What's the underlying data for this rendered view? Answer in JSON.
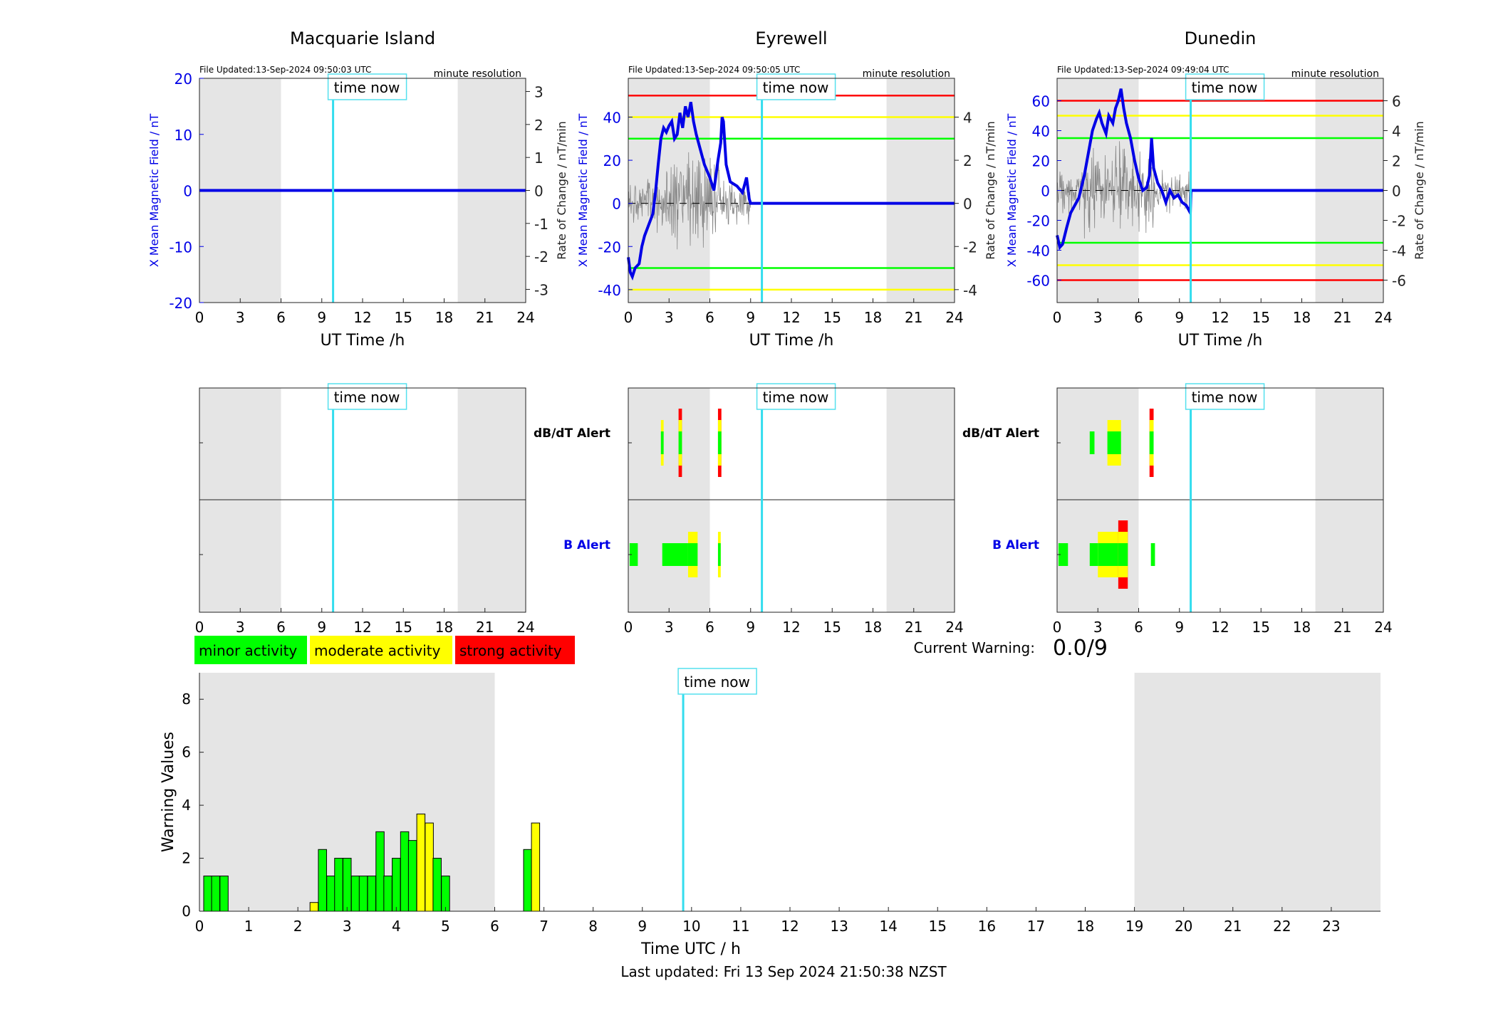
{
  "stations": [
    {
      "name": "Macquarie Island",
      "file_updated": "File Updated:13-Sep-2024 09:50:03 UTC",
      "resolution": "minute resolution",
      "ylabel_left": "X Mean Magnetic Field / nT",
      "ylabel_right": "Rate of Change / nT/min",
      "xlabel": "UT Time /h",
      "ylim": [
        -20,
        20
      ],
      "yticks": [
        -20,
        -10,
        0,
        10,
        20
      ],
      "y2lim": [
        -3.4,
        3.4
      ],
      "y2ticks": [
        -3,
        -2,
        -1,
        0,
        1,
        2,
        3
      ],
      "thresholds": [],
      "field_series": [
        [
          0,
          0
        ],
        [
          24,
          0
        ]
      ],
      "has_rate": false,
      "dbdt_alert": [],
      "b_alert": []
    },
    {
      "name": "Eyrewell",
      "file_updated": "File Updated:13-Sep-2024 09:50:05 UTC",
      "resolution": "minute resolution",
      "ylabel_left": "X Mean Magnetic Field / nT",
      "ylabel_right": "Rate of Change / nT/min",
      "xlabel": "UT Time /h",
      "ylim": [
        -46,
        58
      ],
      "yticks": [
        -40,
        -20,
        0,
        20,
        40
      ],
      "y2lim": [
        -4.6,
        5.8
      ],
      "y2ticks": [
        -4,
        -2,
        0,
        2,
        4
      ],
      "thresholds": [
        {
          "y": 50,
          "color": "#ff0000"
        },
        {
          "y": 40,
          "color": "#ffff00"
        },
        {
          "y": 30,
          "color": "#00ff00"
        },
        {
          "y": -30,
          "color": "#00ff00"
        },
        {
          "y": -40,
          "color": "#ffff00"
        }
      ],
      "field_series": [
        [
          0,
          -25
        ],
        [
          0.15,
          -32
        ],
        [
          0.3,
          -34
        ],
        [
          0.5,
          -30
        ],
        [
          0.8,
          -28
        ],
        [
          1.0,
          -20
        ],
        [
          1.2,
          -15
        ],
        [
          1.5,
          -10
        ],
        [
          1.8,
          -5
        ],
        [
          2.0,
          5
        ],
        [
          2.2,
          18
        ],
        [
          2.4,
          30
        ],
        [
          2.6,
          35
        ],
        [
          2.8,
          33
        ],
        [
          3.0,
          36
        ],
        [
          3.2,
          38
        ],
        [
          3.4,
          30
        ],
        [
          3.6,
          32
        ],
        [
          3.8,
          42
        ],
        [
          4.0,
          35
        ],
        [
          4.2,
          45
        ],
        [
          4.4,
          40
        ],
        [
          4.6,
          47
        ],
        [
          4.8,
          38
        ],
        [
          5.0,
          32
        ],
        [
          5.3,
          25
        ],
        [
          5.6,
          18
        ],
        [
          6.0,
          12
        ],
        [
          6.3,
          6
        ],
        [
          6.6,
          20
        ],
        [
          6.8,
          28
        ],
        [
          6.9,
          40
        ],
        [
          7.0,
          38
        ],
        [
          7.2,
          18
        ],
        [
          7.5,
          10
        ],
        [
          8.0,
          8
        ],
        [
          8.4,
          5
        ],
        [
          8.7,
          12
        ],
        [
          8.9,
          2
        ],
        [
          9.0,
          0
        ],
        [
          9.5,
          0
        ],
        [
          24,
          0
        ]
      ],
      "has_rate": true,
      "dbdt_alert": [
        {
          "t0": 2.4,
          "t1": 2.6,
          "level": 2
        },
        {
          "t0": 3.7,
          "t1": 3.95,
          "level": 3
        },
        {
          "t0": 6.6,
          "t1": 6.85,
          "level": 3
        }
      ],
      "b_alert": [
        {
          "t0": 0.1,
          "t1": 0.7,
          "level": 1
        },
        {
          "t0": 2.5,
          "t1": 4.4,
          "level": 1
        },
        {
          "t0": 4.4,
          "t1": 5.1,
          "level": 2
        },
        {
          "t0": 6.6,
          "t1": 6.8,
          "level": 2
        }
      ]
    },
    {
      "name": "Dunedin",
      "file_updated": "File Updated:13-Sep-2024 09:49:04 UTC",
      "resolution": "minute resolution",
      "ylabel_left": "X Mean Magnetic Field / nT",
      "ylabel_right": "Rate of Change / nT/min",
      "xlabel": "UT Time /h",
      "ylim": [
        -75,
        75
      ],
      "yticks": [
        -60,
        -40,
        -20,
        0,
        20,
        40,
        60
      ],
      "y2lim": [
        -7.5,
        7.5
      ],
      "y2ticks": [
        -6,
        -4,
        -2,
        0,
        2,
        4,
        6
      ],
      "thresholds": [
        {
          "y": 60,
          "color": "#ff0000"
        },
        {
          "y": 50,
          "color": "#ffff00"
        },
        {
          "y": 35,
          "color": "#00ff00"
        },
        {
          "y": -35,
          "color": "#00ff00"
        },
        {
          "y": -50,
          "color": "#ffff00"
        },
        {
          "y": -60,
          "color": "#ff0000"
        }
      ],
      "field_series": [
        [
          0,
          -30
        ],
        [
          0.2,
          -38
        ],
        [
          0.4,
          -36
        ],
        [
          0.7,
          -25
        ],
        [
          1.0,
          -15
        ],
        [
          1.3,
          -10
        ],
        [
          1.6,
          -5
        ],
        [
          2.0,
          10
        ],
        [
          2.3,
          25
        ],
        [
          2.6,
          40
        ],
        [
          2.9,
          48
        ],
        [
          3.1,
          52
        ],
        [
          3.3,
          45
        ],
        [
          3.6,
          38
        ],
        [
          3.8,
          50
        ],
        [
          4.1,
          45
        ],
        [
          4.3,
          55
        ],
        [
          4.5,
          60
        ],
        [
          4.7,
          68
        ],
        [
          4.9,
          55
        ],
        [
          5.1,
          45
        ],
        [
          5.4,
          35
        ],
        [
          5.7,
          20
        ],
        [
          6.0,
          8
        ],
        [
          6.3,
          0
        ],
        [
          6.6,
          2
        ],
        [
          6.8,
          10
        ],
        [
          6.95,
          35
        ],
        [
          7.1,
          15
        ],
        [
          7.4,
          5
        ],
        [
          7.7,
          0
        ],
        [
          8.0,
          -8
        ],
        [
          8.3,
          0
        ],
        [
          8.6,
          -5
        ],
        [
          8.9,
          -3
        ],
        [
          9.2,
          -8
        ],
        [
          9.5,
          -10
        ],
        [
          9.8,
          -15
        ],
        [
          9.85,
          0
        ],
        [
          24,
          0
        ]
      ],
      "has_rate": true,
      "dbdt_alert": [
        {
          "t0": 2.4,
          "t1": 2.75,
          "level": 1
        },
        {
          "t0": 3.7,
          "t1": 4.7,
          "level": 2
        },
        {
          "t0": 6.8,
          "t1": 7.1,
          "level": 3
        }
      ],
      "b_alert": [
        {
          "t0": 0.1,
          "t1": 0.8,
          "level": 1
        },
        {
          "t0": 2.4,
          "t1": 3.0,
          "level": 1
        },
        {
          "t0": 3.0,
          "t1": 4.5,
          "level": 2
        },
        {
          "t0": 4.5,
          "t1": 5.2,
          "level": 3
        },
        {
          "t0": 6.9,
          "t1": 7.2,
          "level": 1
        }
      ]
    }
  ],
  "time_now_label": "time now",
  "time_now_hour": 9.83,
  "night_shading": [
    [
      0,
      6
    ],
    [
      19,
      24
    ]
  ],
  "xticks": [
    0,
    3,
    6,
    9,
    12,
    15,
    18,
    21,
    24
  ],
  "alert_labels": {
    "dbdt": "dB/dT Alert",
    "b": "B Alert"
  },
  "legend": [
    {
      "label": "minor activity",
      "color": "#00ff00"
    },
    {
      "label": "moderate activity",
      "color": "#ffff00"
    },
    {
      "label": "strong activity",
      "color": "#ff0000"
    }
  ],
  "current_warning": {
    "label": "Current Warning:",
    "value": "0.0/9"
  },
  "chart_data": {
    "type": "bar",
    "title": "",
    "xlabel": "Time UTC / h",
    "ylabel": "Warning Values",
    "xlim": [
      0,
      24
    ],
    "ylim": [
      0,
      9
    ],
    "xticks": [
      0,
      1,
      2,
      3,
      4,
      5,
      6,
      7,
      8,
      9,
      10,
      11,
      12,
      13,
      14,
      15,
      16,
      17,
      18,
      19,
      20,
      21,
      22,
      23
    ],
    "yticks": [
      0,
      2,
      4,
      6,
      8
    ],
    "bar_width_h": 0.1667,
    "bars": [
      {
        "t": 0.17,
        "v": 1.33,
        "level": 1
      },
      {
        "t": 0.33,
        "v": 1.33,
        "level": 1
      },
      {
        "t": 0.5,
        "v": 1.33,
        "level": 1
      },
      {
        "t": 2.33,
        "v": 0.33,
        "level": 2
      },
      {
        "t": 2.5,
        "v": 2.33,
        "level": 1
      },
      {
        "t": 2.67,
        "v": 1.33,
        "level": 1
      },
      {
        "t": 2.83,
        "v": 2.0,
        "level": 1
      },
      {
        "t": 3.0,
        "v": 2.0,
        "level": 1
      },
      {
        "t": 3.17,
        "v": 1.33,
        "level": 1
      },
      {
        "t": 3.33,
        "v": 1.33,
        "level": 1
      },
      {
        "t": 3.5,
        "v": 1.33,
        "level": 1
      },
      {
        "t": 3.67,
        "v": 3.0,
        "level": 1
      },
      {
        "t": 3.83,
        "v": 1.33,
        "level": 1
      },
      {
        "t": 4.0,
        "v": 2.0,
        "level": 1
      },
      {
        "t": 4.17,
        "v": 3.0,
        "level": 1
      },
      {
        "t": 4.33,
        "v": 2.67,
        "level": 1
      },
      {
        "t": 4.5,
        "v": 3.67,
        "level": 2
      },
      {
        "t": 4.67,
        "v": 3.33,
        "level": 2
      },
      {
        "t": 4.83,
        "v": 2.0,
        "level": 1
      },
      {
        "t": 5.0,
        "v": 1.33,
        "level": 1
      },
      {
        "t": 6.67,
        "v": 2.33,
        "level": 1
      },
      {
        "t": 6.83,
        "v": 3.33,
        "level": 2
      }
    ]
  },
  "last_updated": "Last updated: Fri 13 Sep 2024 21:50:38 NZST"
}
